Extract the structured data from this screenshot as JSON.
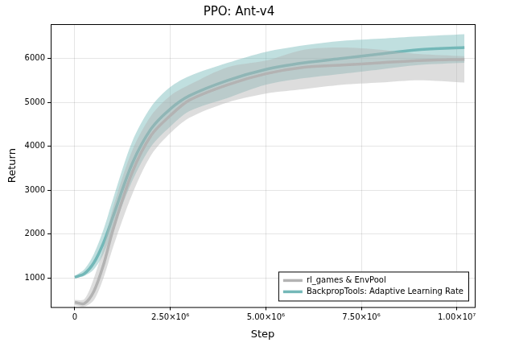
{
  "chart_data": {
    "type": "line",
    "title": "PPO: Ant-v4",
    "x_label": "Step",
    "y_label": "Return",
    "x": [
      0,
      250000,
      500000,
      750000,
      1000000,
      1500000,
      2000000,
      2500000,
      3000000,
      4000000,
      5000000,
      6000000,
      7000000,
      8000000,
      9000000,
      10200000
    ],
    "series": [
      {
        "name": "rl_games & EnvPool",
        "color": "#b3b3b3",
        "values": [
          450,
          420,
          700,
          1300,
          2100,
          3400,
          4250,
          4700,
          5050,
          5400,
          5650,
          5800,
          5850,
          5900,
          5950,
          5980
        ],
        "lower": [
          380,
          350,
          500,
          1000,
          1700,
          2900,
          3800,
          4300,
          4650,
          5000,
          5200,
          5300,
          5400,
          5450,
          5500,
          5450
        ],
        "upper": [
          500,
          520,
          1000,
          1700,
          2600,
          3900,
          4700,
          5150,
          5400,
          5800,
          5950,
          6200,
          6250,
          6200,
          6100,
          6050
        ]
      },
      {
        "name": "BackpropTools: Adaptive Learning Rate",
        "color": "#74b8b8",
        "values": [
          1020,
          1100,
          1350,
          1800,
          2400,
          3600,
          4400,
          4850,
          5150,
          5500,
          5750,
          5900,
          6000,
          6100,
          6200,
          6250
        ],
        "lower": [
          1000,
          1050,
          1200,
          1550,
          2100,
          3200,
          4000,
          4450,
          4800,
          5100,
          5400,
          5550,
          5650,
          5750,
          5850,
          5900
        ],
        "upper": [
          1050,
          1200,
          1550,
          2100,
          2800,
          4100,
          4900,
          5350,
          5600,
          5900,
          6150,
          6300,
          6400,
          6450,
          6500,
          6550
        ]
      }
    ],
    "xlim": [
      -630000,
      10470000
    ],
    "ylim": [
      340,
      6780
    ],
    "xticks": [
      0,
      {
        "value": 2500000,
        "label": "2.50×10⁶"
      },
      {
        "value": 5000000,
        "label": "5.00×10⁶"
      },
      {
        "value": 7500000,
        "label": "7.50×10⁶"
      },
      {
        "value": 10000000,
        "label": "1.00×10⁷"
      }
    ],
    "yticks": [
      1000,
      2000,
      3000,
      4000,
      5000,
      6000
    ],
    "grid": true,
    "legend": "lower right"
  }
}
